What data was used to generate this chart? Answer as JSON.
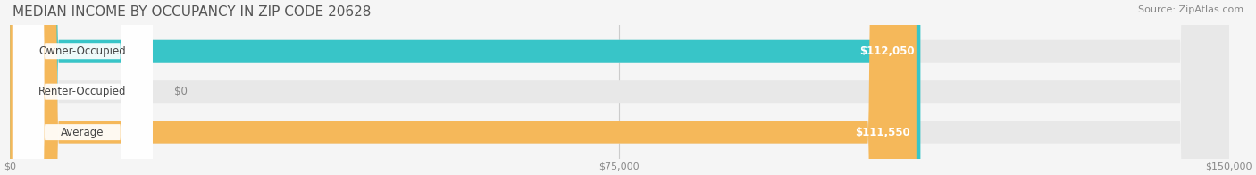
{
  "title": "MEDIAN INCOME BY OCCUPANCY IN ZIP CODE 20628",
  "source": "Source: ZipAtlas.com",
  "categories": [
    "Owner-Occupied",
    "Renter-Occupied",
    "Average"
  ],
  "values": [
    112050,
    0,
    111550
  ],
  "bar_colors": [
    "#38C5C8",
    "#C8A8D8",
    "#F5B85A"
  ],
  "label_colors": [
    "#38C5C8",
    "#C8A8D8",
    "#F5B85A"
  ],
  "value_labels": [
    "$112,050",
    "$0",
    "$111,550"
  ],
  "xlim": [
    0,
    150000
  ],
  "xticks": [
    0,
    75000,
    150000
  ],
  "xtick_labels": [
    "$0",
    "$75,000",
    "$150,000"
  ],
  "bar_height": 0.55,
  "background_color": "#f5f5f5",
  "bar_background_color": "#e8e8e8",
  "title_fontsize": 11,
  "source_fontsize": 8,
  "label_fontsize": 8.5,
  "value_fontsize": 8.5,
  "tick_fontsize": 8
}
